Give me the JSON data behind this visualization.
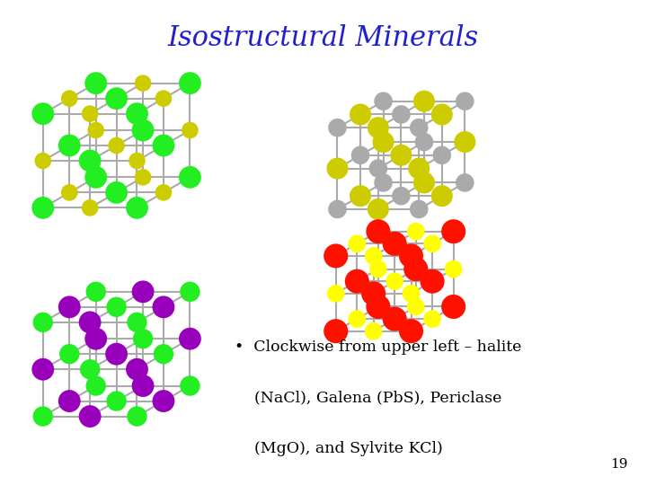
{
  "title": "Isostructural Minerals",
  "title_color": "#2020CC",
  "title_fontsize": 22,
  "title_font": "serif",
  "bullet_lines": [
    "•  Clockwise from upper left – halite",
    "    (NaCl), Galena (PbS), Periclase",
    "    (MgO), and Sylvite KCl)"
  ],
  "page_number": "19",
  "background_color": "#ffffff",
  "text_color": "#000000",
  "text_fontsize": 12.5,
  "text_font": "serif",
  "crystal_configs": {
    "halite": {
      "atom1": "#22ee22",
      "atom2": "#cccc00",
      "a1size": 320,
      "a2size": 180
    },
    "galena": {
      "atom1": "#aaaaaa",
      "atom2": "#cccc00",
      "a1size": 220,
      "a2size": 300
    },
    "periclase": {
      "atom1": "#22ee22",
      "atom2": "#9900bb",
      "a1size": 260,
      "a2size": 320
    },
    "sylvite": {
      "atom1": "#ff1100",
      "atom2": "#ffff00",
      "a1size": 380,
      "a2size": 200
    }
  },
  "img_axes": {
    "halite": [
      0.03,
      0.5,
      0.3,
      0.4
    ],
    "galena": [
      0.49,
      0.5,
      0.26,
      0.36
    ],
    "periclase": [
      0.03,
      0.07,
      0.3,
      0.4
    ],
    "sylvite": [
      0.49,
      0.27,
      0.24,
      0.3
    ]
  },
  "bond_color": "#aaaaaa",
  "bond_lw": 1.5
}
